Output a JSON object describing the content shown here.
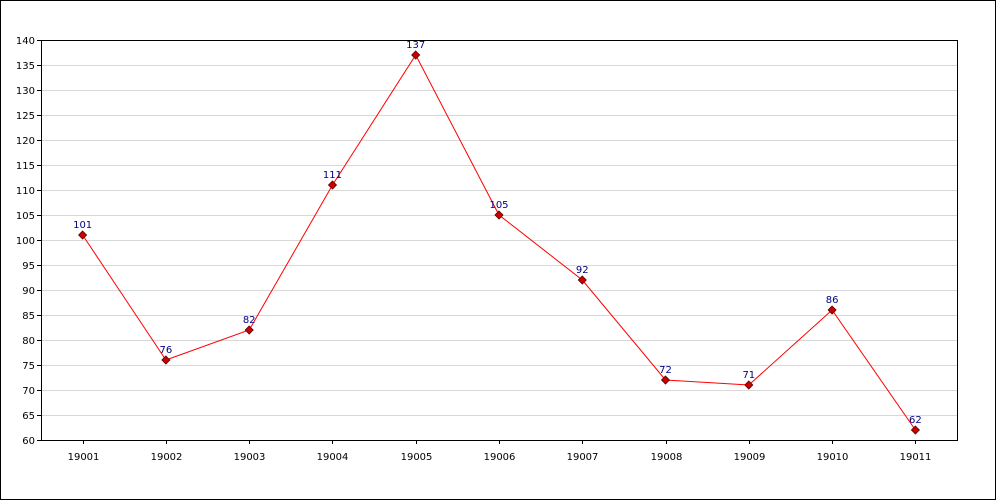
{
  "chart_data": {
    "type": "line",
    "title": "",
    "xlabel": "",
    "ylabel": "",
    "categories": [
      "19001",
      "19002",
      "19003",
      "19004",
      "19005",
      "19006",
      "19007",
      "19008",
      "19009",
      "19010",
      "19011"
    ],
    "series": [
      {
        "values": [
          101,
          76,
          82,
          111,
          137,
          105,
          92,
          72,
          71,
          86,
          62
        ],
        "color": "#ff0000",
        "marker_color": "#cc0000"
      }
    ],
    "ylim": [
      60,
      140
    ],
    "yticks": [
      60,
      65,
      70,
      75,
      80,
      85,
      90,
      95,
      100,
      105,
      110,
      115,
      120,
      125,
      130,
      135,
      140
    ],
    "grid": true,
    "legend": "none",
    "data_labels": true
  }
}
